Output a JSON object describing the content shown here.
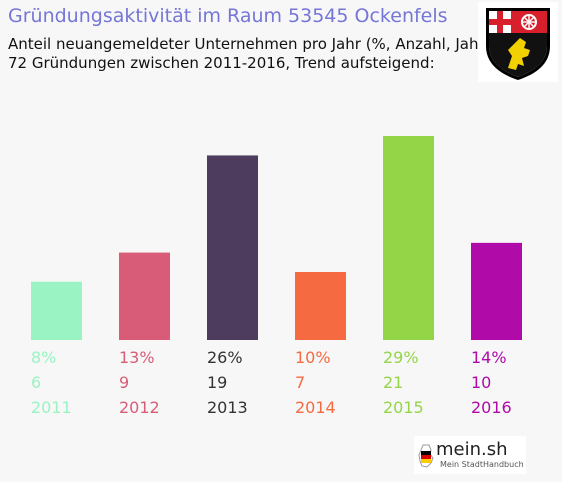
{
  "header": {
    "title": "Gründungsaktivität im Raum 53545 Ockenfels",
    "subtitle_line1": "Anteil neuangemeldeter Unternehmen pro Jahr (%, Anzahl, Jahr)",
    "subtitle_line2": "72 Gründungen zwischen 2011-2016, Trend aufsteigend:"
  },
  "crest": {
    "icon": "coat-of-arms-rhineland-palatinate-icon"
  },
  "logo": {
    "main": "mein.sh",
    "sub": "Mein StadtHandbuch"
  },
  "chart_data": {
    "type": "bar",
    "categories": [
      "2011",
      "2012",
      "2013",
      "2014",
      "2015",
      "2016"
    ],
    "percent_labels": [
      "8%",
      "13%",
      "26%",
      "10%",
      "29%",
      "14%"
    ],
    "count_labels": [
      "6",
      "9",
      "19",
      "7",
      "21",
      "10"
    ],
    "series": [
      {
        "values": [
          6,
          9,
          19,
          7,
          21,
          10
        ]
      }
    ],
    "colors": [
      "#99f3c2",
      "#d85c78",
      "#4d3c5e",
      "#f56a40",
      "#94d548",
      "#b00aa8"
    ],
    "grid": false,
    "legend": "none"
  }
}
